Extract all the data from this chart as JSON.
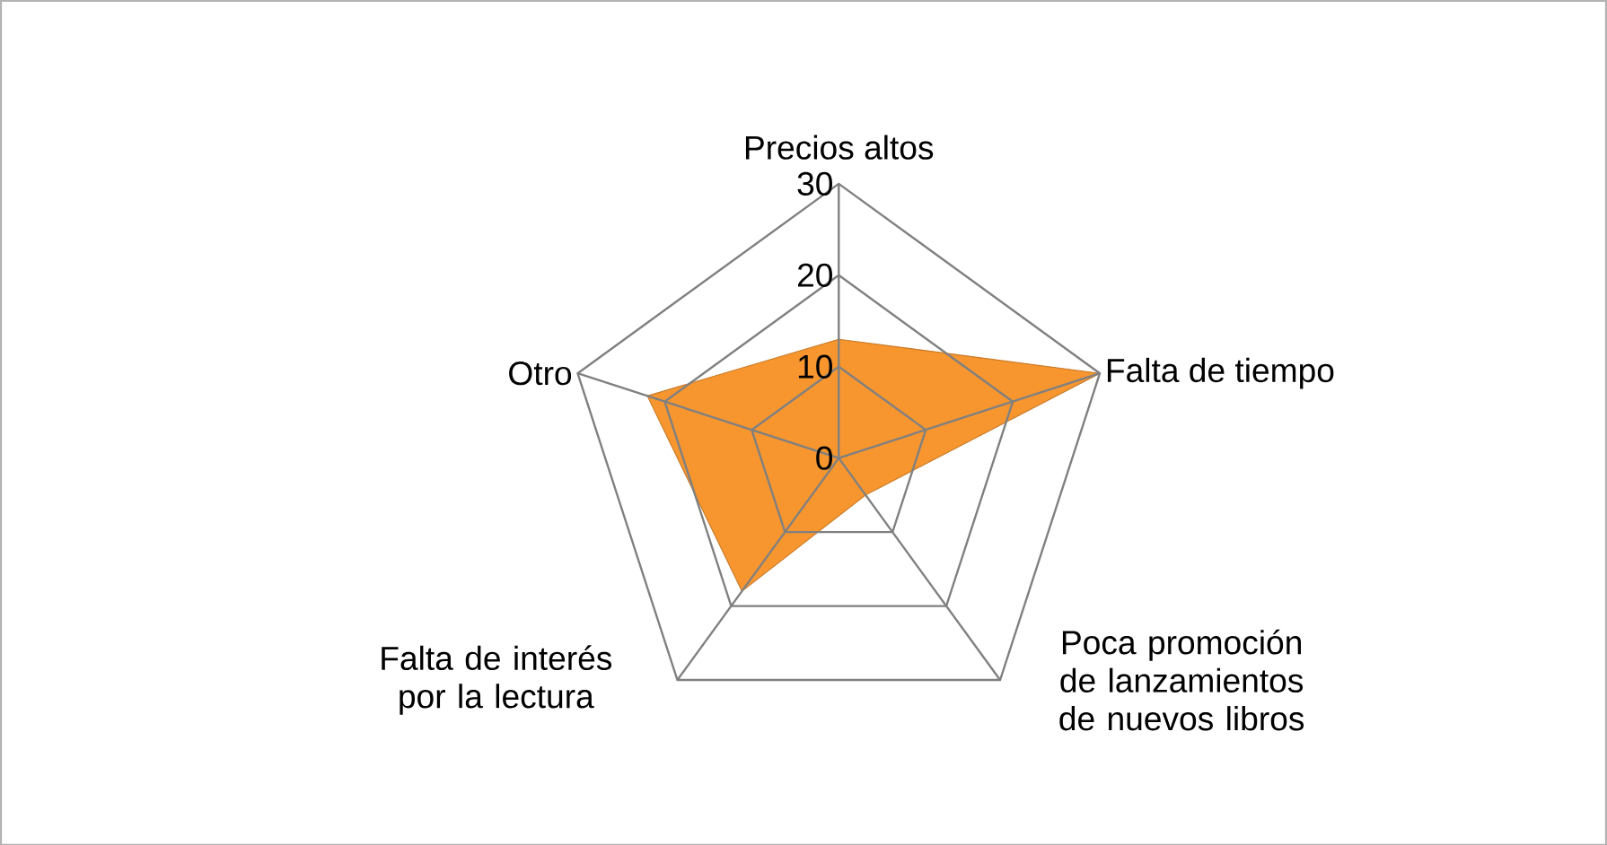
{
  "chart_data": {
    "type": "radar",
    "categories": [
      "Precios altos",
      "Falta de tiempo",
      "Poca promoción de lanzamientos de nuevos libros",
      "Falta de interés por la lectura",
      "Otro"
    ],
    "series": [
      {
        "color": "#f7962f",
        "values": [
          13,
          30,
          5,
          18,
          22
        ]
      }
    ],
    "ylim": [
      0,
      30
    ],
    "yticks": [
      0,
      10,
      20,
      30
    ],
    "grid": true
  }
}
